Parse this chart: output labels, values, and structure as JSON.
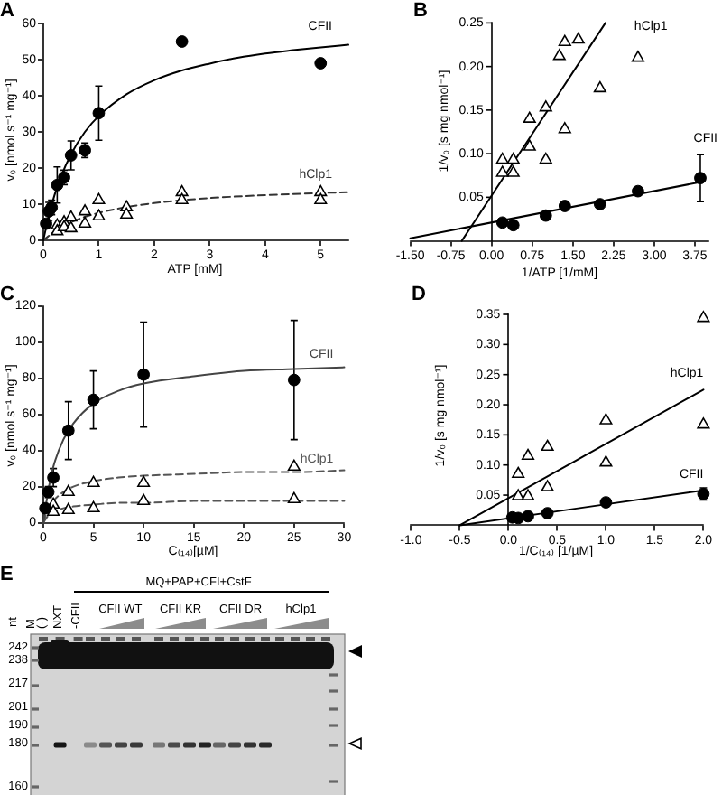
{
  "chart_data": [
    {
      "type": "scatter",
      "title": "A",
      "xlabel": "ATP [mM]",
      "ylabel": "v₀ [nmol s⁻¹ mg⁻¹]",
      "xlim": [
        0,
        5.5
      ],
      "xticks": [
        0,
        1,
        2,
        3,
        4,
        5
      ],
      "ylim": [
        0,
        60
      ],
      "yticks": [
        0,
        10,
        20,
        30,
        40,
        50,
        60
      ],
      "series": [
        {
          "type": "scatter",
          "color": "#000000",
          "marker": "circle",
          "x": [
            0.05,
            0.1,
            0.15,
            0.25,
            0.375,
            0.5,
            0.75,
            1,
            2.5,
            5
          ],
          "values": [
            4.6,
            8,
            9.1,
            15.3,
            17.4,
            23.5,
            24.9,
            35.2,
            55,
            49
          ],
          "errors": [
            null,
            2.5,
            2,
            5,
            2,
            4,
            2,
            7.5,
            null,
            null
          ]
        },
        {
          "type": "scatter",
          "color": "#000000",
          "marker": "triangle",
          "x": [
            0.25,
            0.25,
            0.375,
            0.375,
            0.5,
            0.5,
            0.75,
            0.75,
            1,
            1,
            1.5,
            1.5,
            2.5,
            2.5,
            5,
            5
          ],
          "values": [
            4.1,
            2.5,
            5,
            3.6,
            6.3,
            3.3,
            8,
            4.6,
            11.1,
            6.6,
            9.1,
            7.1,
            13.3,
            11.1,
            13.3,
            11.1
          ]
        },
        {
          "type": "line",
          "name": "CFII",
          "color": "#000000",
          "marker": "none",
          "line_style": "solid",
          "x": [
            0,
            0.1,
            0.2,
            0.3,
            0.5,
            0.75,
            1,
            1.5,
            2,
            2.5,
            3,
            3.5,
            4,
            4.5,
            5,
            5.5
          ],
          "values": [
            0,
            6.9,
            12.4,
            16.9,
            23.8,
            30,
            34.4,
            40.4,
            44.3,
            47,
            48.9,
            50.5,
            51.7,
            52.6,
            53.4,
            54.1
          ]
        },
        {
          "type": "line",
          "name": "hClp1",
          "color": "#333333",
          "marker": "none",
          "line_style": "dashed",
          "x": [
            0,
            0.25,
            0.5,
            0.75,
            1,
            1.5,
            2,
            2.5,
            3,
            4,
            5,
            5.5
          ],
          "values": [
            0,
            3,
            5,
            6.5,
            7.6,
            9.2,
            10.3,
            11.1,
            11.7,
            12.5,
            13.1,
            13.3
          ]
        }
      ]
    },
    {
      "type": "scatter",
      "title": "B",
      "xlabel": "1/ATP [1/mM]",
      "ylabel": "1/v₀ [s mg nmol⁻¹]",
      "xlim": [
        -1.5,
        4
      ],
      "xticks": [
        {
          "value": -1.5,
          "label": "-1.50"
        },
        -0.75,
        {
          "value": 0,
          "label": "0.00"
        },
        0.75,
        {
          "value": 1.5,
          "label": "1.50"
        },
        2.25,
        {
          "value": 3,
          "label": "3.00"
        },
        3.75
      ],
      "ylim": [
        0,
        0.25
      ],
      "yticks": [
        0.05,
        {
          "value": 0.1,
          "label": "0.10"
        },
        0.15,
        {
          "value": 0.2,
          "label": "0.20"
        },
        0.25
      ],
      "series": [
        {
          "type": "scatter",
          "color": "#000000",
          "marker": "circle",
          "x": [
            0.2,
            0.4,
            1,
            1.35,
            2,
            2.7,
            3.85
          ],
          "values": [
            0.021,
            0.018,
            0.029,
            0.04,
            0.042,
            0.057,
            0.072
          ],
          "errors": [
            null,
            null,
            null,
            null,
            null,
            null,
            0.027
          ]
        },
        {
          "type": "scatter",
          "color": "#000000",
          "marker": "triangle",
          "x": [
            0.2,
            0.2,
            0.4,
            0.4,
            0.7,
            0.7,
            1,
            1,
            1.25,
            1.35,
            1.35,
            1.6,
            2,
            2.7
          ],
          "values": [
            0.093,
            0.078,
            0.093,
            0.078,
            0.14,
            0.108,
            0.153,
            0.093,
            0.212,
            0.228,
            0.128,
            0.231,
            0.175,
            0.21
          ]
        },
        {
          "type": "line",
          "name": "CFII",
          "color": "#000000",
          "marker": "none",
          "line_style": "solid",
          "x": [
            -1.5,
            3.9
          ],
          "values": [
            0.003,
            0.068
          ]
        },
        {
          "type": "line",
          "name": "hClp1",
          "color": "#000000",
          "marker": "none",
          "line_style": "solid",
          "x": [
            -0.55,
            2.1
          ],
          "values": [
            0,
            0.25
          ]
        }
      ]
    },
    {
      "type": "scatter",
      "title": "C",
      "xlabel": "C₍₁₄₎[µM]",
      "ylabel": "v₀ [nmol s⁻¹ mg⁻¹]",
      "xlim": [
        0,
        30
      ],
      "xticks": [
        0,
        5,
        10,
        15,
        20,
        25,
        30
      ],
      "ylim": [
        0,
        120
      ],
      "yticks": [
        0,
        20,
        40,
        60,
        80,
        100,
        120
      ],
      "series": [
        {
          "type": "scatter",
          "color": "#000000",
          "marker": "circle",
          "x": [
            0.2,
            0.5,
            1,
            2.5,
            5,
            10,
            25
          ],
          "values": [
            8,
            17,
            25,
            51,
            68,
            82,
            79
          ],
          "errors": [
            null,
            3,
            5,
            16,
            16,
            29,
            33
          ]
        },
        {
          "type": "scatter",
          "color": "#000000",
          "marker": "triangle",
          "x": [
            1,
            1,
            2.5,
            2.5,
            5,
            5,
            10,
            10,
            25,
            25
          ],
          "values": [
            10,
            6,
            17,
            7,
            22,
            8,
            22,
            12,
            31,
            13
          ]
        },
        {
          "type": "line",
          "name": "CFII",
          "color": "#444444",
          "marker": "none",
          "line_style": "solid",
          "x": [
            0,
            0.5,
            1,
            2,
            3,
            5,
            7.5,
            10,
            15,
            20,
            25,
            30
          ],
          "values": [
            0,
            18,
            31,
            46,
            55,
            66,
            73,
            77,
            81,
            84,
            85,
            86
          ]
        },
        {
          "type": "line",
          "name": "hClp1",
          "color": "#555555",
          "marker": "none",
          "line_style": "dashed",
          "x": [
            0,
            0.5,
            1,
            2,
            3,
            5,
            7.5,
            10,
            15,
            20,
            25,
            30
          ],
          "values": [
            0,
            8,
            12,
            17,
            20,
            23,
            25,
            26,
            27,
            28,
            28,
            29
          ]
        },
        {
          "type": "line",
          "color": "#555555",
          "marker": "none",
          "line_style": "dashed",
          "x": [
            0,
            0.5,
            1,
            2,
            3,
            5,
            7.5,
            10,
            15,
            20,
            25,
            30
          ],
          "values": [
            0,
            4,
            6,
            8,
            9,
            10,
            11,
            11,
            12,
            12,
            12,
            12
          ]
        }
      ]
    },
    {
      "type": "scatter",
      "title": "D",
      "xlabel": "1/C₍₁₄₎ [1/µM]",
      "ylabel": "1/v₀ [s mg nmol⁻¹]",
      "xlim": [
        -1,
        2
      ],
      "xticks": [
        {
          "value": -1,
          "label": "-1.0"
        },
        -0.5,
        {
          "value": 0,
          "label": "0.0"
        },
        0.5,
        {
          "value": 1,
          "label": "1.0"
        },
        1.5,
        {
          "value": 2,
          "label": "2.0"
        }
      ],
      "ylim": [
        0,
        0.35
      ],
      "yticks": [
        0.05,
        {
          "value": 0.1,
          "label": "0.10"
        },
        0.15,
        {
          "value": 0.2,
          "label": "0.20"
        },
        0.25,
        {
          "value": 0.3,
          "label": "0.30"
        },
        0.35
      ],
      "series": [
        {
          "type": "scatter",
          "color": "#000000",
          "marker": "circle",
          "x": [
            0.04,
            0.1,
            0.2,
            0.4,
            1,
            2
          ],
          "values": [
            0.013,
            0.012,
            0.015,
            0.02,
            0.038,
            0.052
          ],
          "errors": [
            null,
            null,
            null,
            null,
            null,
            0.01
          ]
        },
        {
          "type": "scatter",
          "color": "#000000",
          "marker": "triangle",
          "x": [
            0.1,
            0.1,
            0.2,
            0.2,
            0.4,
            0.4,
            1,
            1,
            2,
            2
          ],
          "values": [
            0.085,
            0.048,
            0.115,
            0.048,
            0.13,
            0.063,
            0.174,
            0.104,
            0.344,
            0.167
          ]
        },
        {
          "type": "line",
          "name": "CFII",
          "color": "#000000",
          "marker": "none",
          "line_style": "solid",
          "x": [
            -0.5,
            2
          ],
          "values": [
            0,
            0.058
          ]
        },
        {
          "type": "line",
          "name": "hClp1",
          "color": "#000000",
          "marker": "none",
          "line_style": "solid",
          "x": [
            -0.5,
            2
          ],
          "values": [
            0,
            0.225
          ]
        }
      ]
    },
    {
      "type": "other",
      "title": "E",
      "ylabel": "nt",
      "annotations": [
        "MQ+PAP+CFI+CstF",
        "M",
        "(-)",
        "NXT",
        "-CFII",
        "CFII WT",
        "CFII KR",
        "CFII DR",
        "hClp1",
        "242",
        "238",
        "217",
        "201",
        "190",
        "180",
        "160"
      ]
    }
  ]
}
